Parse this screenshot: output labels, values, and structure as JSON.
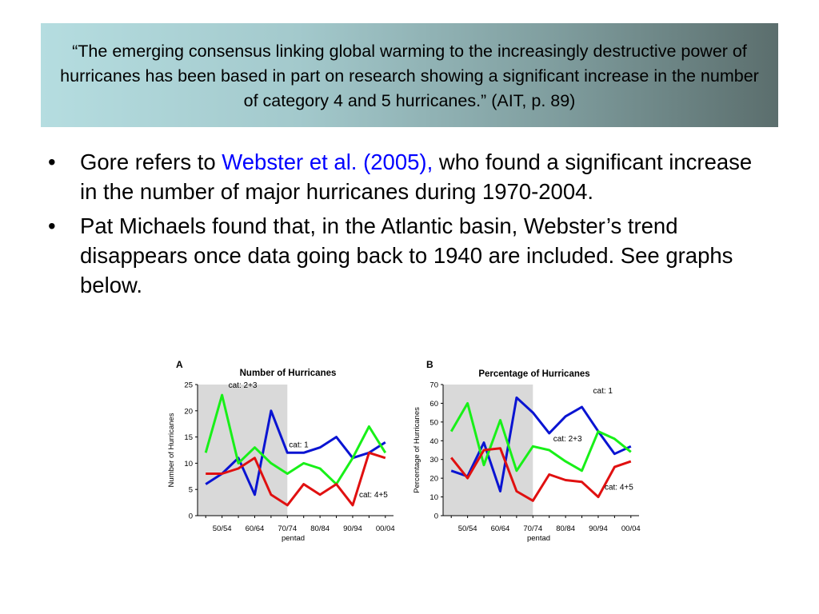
{
  "banner": {
    "quote": "“The emerging consensus linking global warming to the increasingly destructive power of hurricanes has been based in part on research showing a significant increase in the number of category 4 and 5 hurricanes.” (AIT, p. 89)"
  },
  "bullets": [
    {
      "marker": "•",
      "before": "Gore refers to ",
      "link": "Webster et al. (2005),",
      "after": " who found a significant increase in the number of major hurricanes during 1970-2004."
    },
    {
      "marker": "•",
      "text": "Pat Michaels found that, in the Atlantic basin, Webster’s trend disappears once data going back to 1940 are included. See graphs below."
    }
  ],
  "colors": {
    "link": "#0000ff",
    "series_blue": "#0a14d2",
    "series_green": "#18f018",
    "series_red": "#e01010",
    "shade": "#d9d9d9"
  },
  "chart_data": [
    {
      "type": "line",
      "panel": "A",
      "title": "Number of Hurricanes",
      "xlabel": "pentad",
      "ylabel": "Number of Hurricanes",
      "ylim": [
        0,
        25
      ],
      "yticks": [
        0,
        5,
        10,
        15,
        20,
        25
      ],
      "x": [
        "45/49",
        "50/54",
        "55/59",
        "60/64",
        "65/69",
        "70/74",
        "75/79",
        "80/84",
        "85/89",
        "90/94",
        "95/99",
        "00/04"
      ],
      "xtick_labels": [
        "50/54",
        "60/64",
        "70/74",
        "80/84",
        "90/94",
        "00/04"
      ],
      "shaded_range": [
        "45/49",
        "70/74"
      ],
      "grid": false,
      "series": [
        {
          "name": "cat: 1",
          "color": "#0a14d2",
          "values": [
            6,
            8,
            11,
            4,
            20,
            12,
            12,
            13,
            15,
            11,
            12,
            14
          ]
        },
        {
          "name": "cat: 2+3",
          "color": "#18f018",
          "values": [
            12,
            23,
            10,
            13,
            10,
            8,
            10,
            9,
            6,
            11,
            17,
            12
          ]
        },
        {
          "name": "cat: 4+5",
          "color": "#e01010",
          "values": [
            8,
            8,
            9,
            11,
            4,
            2,
            6,
            4,
            6,
            2,
            12,
            11
          ]
        }
      ]
    },
    {
      "type": "line",
      "panel": "B",
      "title": "Percentage of Hurricanes",
      "xlabel": "pentad",
      "ylabel": "Percentage of Hurricanes",
      "ylim": [
        0,
        70
      ],
      "yticks": [
        0,
        10,
        20,
        30,
        40,
        50,
        60,
        70
      ],
      "x": [
        "45/49",
        "50/54",
        "55/59",
        "60/64",
        "65/69",
        "70/74",
        "75/79",
        "80/84",
        "85/89",
        "90/94",
        "95/99",
        "00/04"
      ],
      "xtick_labels": [
        "50/54",
        "60/64",
        "70/74",
        "80/84",
        "90/94",
        "00/04"
      ],
      "shaded_range": [
        "45/49",
        "70/74"
      ],
      "grid": false,
      "series": [
        {
          "name": "cat: 1",
          "color": "#0a14d2",
          "values": [
            24,
            21,
            39,
            13,
            63,
            55,
            44,
            53,
            58,
            45,
            33,
            37
          ]
        },
        {
          "name": "cat: 2+3",
          "color": "#18f018",
          "values": [
            45,
            60,
            27,
            51,
            24,
            37,
            35,
            29,
            24,
            45,
            41,
            34
          ]
        },
        {
          "name": "cat: 4+5",
          "color": "#e01010",
          "values": [
            31,
            20,
            35,
            36,
            13,
            8,
            22,
            19,
            18,
            10,
            26,
            29
          ]
        }
      ]
    }
  ]
}
